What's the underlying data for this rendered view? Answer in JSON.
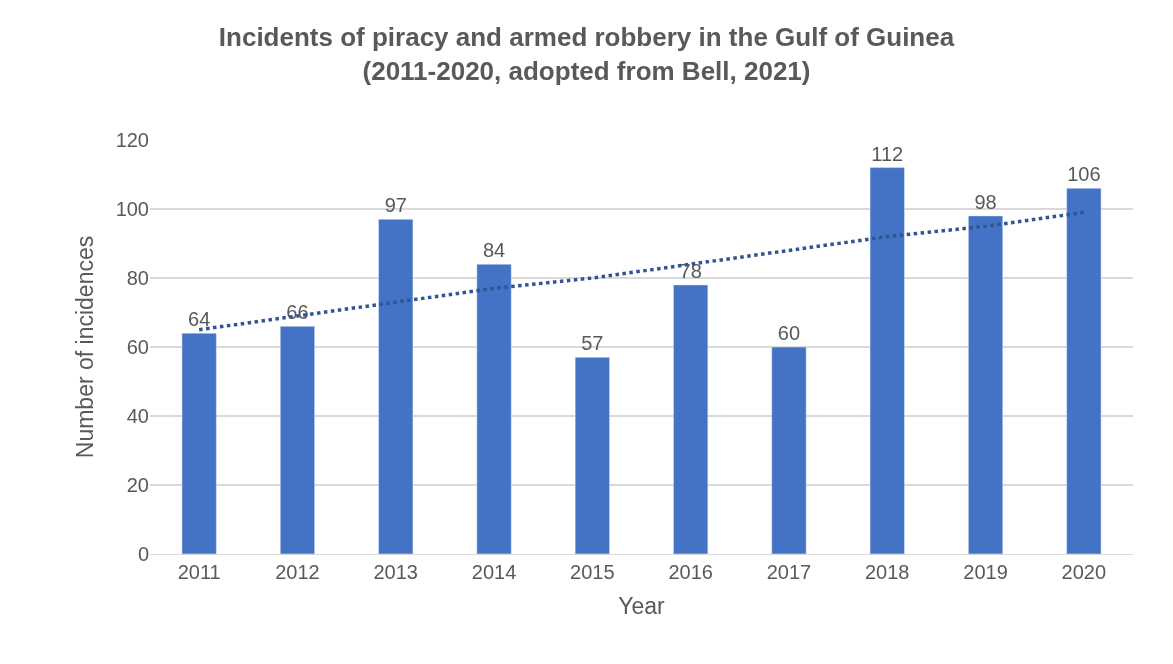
{
  "chart_data": {
    "type": "bar",
    "title": "Incidents of piracy and armed robbery in the Gulf of Guinea\n(2011-2020, adopted from Bell, 2021)",
    "xlabel": "Year",
    "ylabel": "Number of incidences",
    "categories": [
      "2011",
      "2012",
      "2013",
      "2014",
      "2015",
      "2016",
      "2017",
      "2018",
      "2019",
      "2020"
    ],
    "series": [
      {
        "color": "#4472c4",
        "values": [
          64,
          66,
          97,
          84,
          57,
          78,
          60,
          112,
          98,
          106
        ],
        "value_labels": [
          "64",
          "66",
          "97",
          "84",
          "57",
          "78",
          "60",
          "112",
          "98",
          "106"
        ]
      },
      {
        "type": "line",
        "color": "#2f5597",
        "line_style": "dotted",
        "values": [
          65,
          69,
          73,
          77,
          80,
          84,
          88,
          92,
          95,
          99
        ]
      }
    ],
    "ylim": [
      0,
      120
    ],
    "yticks": [
      0,
      20,
      40,
      60,
      80,
      100,
      120
    ],
    "grid": "y"
  }
}
